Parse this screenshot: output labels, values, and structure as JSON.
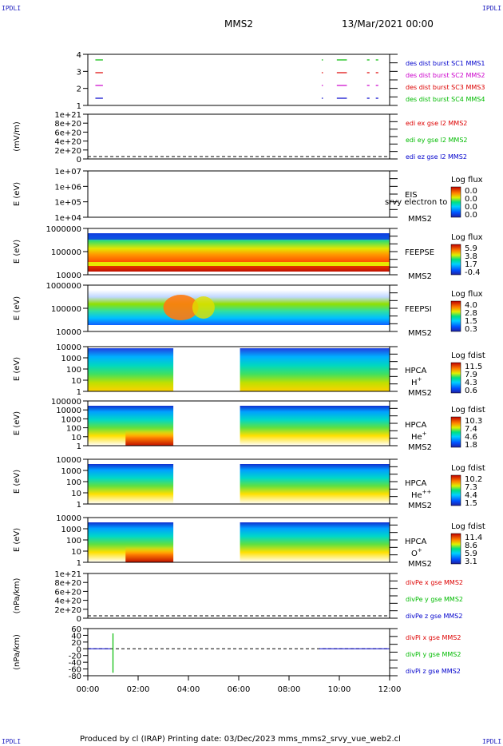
{
  "corners": {
    "tl": "IPDLI",
    "tr": "IPDLI",
    "bl": "IPDLI",
    "br": "IPDLI"
  },
  "header": {
    "title": "MMS2",
    "date": "13/Mar/2021 00:00"
  },
  "footer": {
    "text": "Produced by cl (IRAP)   Printing date: 03/Dec/2023   mms_mms2_srvy_vue_web2.cl"
  },
  "chart_data": {
    "type": "stacked-panels",
    "x_ticks": [
      "00:00",
      "02:00",
      "04:00",
      "06:00",
      "08:00",
      "10:00",
      "12:00"
    ],
    "x_range_hours": [
      0,
      12
    ],
    "panels": [
      {
        "id": "burst",
        "ylabel": "",
        "yticks": [
          "4",
          "3",
          "2",
          "1"
        ],
        "legend": [
          {
            "text": "des dist burst SC1 MMS1",
            "color": "#0000cc"
          },
          {
            "text": "des dist burst SC2 MMS2",
            "color": "#cc00cc"
          },
          {
            "text": "des dist burst SC3 MMS3",
            "color": "#dd0000"
          },
          {
            "text": "des dist burst SC4 MMS4",
            "color": "#00bb00"
          }
        ]
      },
      {
        "id": "edi",
        "ylabel": "(mV/m)",
        "yticks": [
          "1e+21",
          "8e+20",
          "6e+20",
          "4e+20",
          "2e+20",
          "0"
        ],
        "legend": [
          {
            "text": "edi ex gse l2 MMS2",
            "color": "#dd0000"
          },
          {
            "text": "edi ey gse l2 MMS2",
            "color": "#00bb00"
          },
          {
            "text": "edi ez gse l2 MMS2",
            "color": "#0000cc"
          }
        ]
      },
      {
        "id": "eis",
        "ylabel": "E (eV)",
        "yticks": [
          "1e+07",
          "1e+06",
          "1e+05",
          "1e+04"
        ],
        "label1": "EIS",
        "label2": "MMS2",
        "overlay": "srvy electron to",
        "cbar_title": "Log flux",
        "cbar_ticks": [
          "0.0",
          "0.0",
          "0.0",
          "0.0"
        ]
      },
      {
        "id": "feepse",
        "ylabel": "E (eV)",
        "yticks": [
          "1000000",
          "100000",
          "10000"
        ],
        "label1": "FEEPSE",
        "label2": "MMS2",
        "cbar_title": "Log flux",
        "cbar_ticks": [
          "5.9",
          "3.8",
          "1.7",
          "-0.4"
        ]
      },
      {
        "id": "feepsi",
        "ylabel": "E (eV)",
        "yticks": [
          "1000000",
          "100000",
          "10000"
        ],
        "label1": "FEEPSI",
        "label2": "MMS2",
        "cbar_title": "Log flux",
        "cbar_ticks": [
          "4.0",
          "2.8",
          "1.5",
          "0.3"
        ]
      },
      {
        "id": "hpca_h",
        "ylabel": "E (eV)",
        "yticks": [
          "10000",
          "1000",
          "100",
          "10",
          "1"
        ],
        "label1": "HPCA",
        "label2": "MMS2",
        "species": "H",
        "sup": "+",
        "cbar_title": "Log fdist",
        "cbar_ticks": [
          "11.5",
          "7.9",
          "4.3",
          "0.6"
        ]
      },
      {
        "id": "hpca_he",
        "ylabel": "E (eV)",
        "yticks": [
          "100000",
          "10000",
          "1000",
          "100",
          "10",
          "1"
        ],
        "label1": "HPCA",
        "label2": "MMS2",
        "species": "He",
        "sup": "+",
        "cbar_title": "Log fdist",
        "cbar_ticks": [
          "10.3",
          "7.4",
          "4.6",
          "1.8"
        ]
      },
      {
        "id": "hpca_hepp",
        "ylabel": "E (eV)",
        "yticks": [
          "10000",
          "1000",
          "100",
          "10",
          "1"
        ],
        "label1": "HPCA",
        "label2": "MMS2",
        "species": "He",
        "sup": "++",
        "cbar_title": "Log fdist",
        "cbar_ticks": [
          "10.2",
          "7.3",
          "4.4",
          "1.5"
        ]
      },
      {
        "id": "hpca_o",
        "ylabel": "E (eV)",
        "yticks": [
          "10000",
          "1000",
          "100",
          "10",
          "1"
        ],
        "label1": "HPCA",
        "label2": "MMS2",
        "species": "O",
        "sup": "+",
        "cbar_title": "Log fdist",
        "cbar_ticks": [
          "11.4",
          "8.6",
          "5.9",
          "3.1"
        ]
      },
      {
        "id": "divpe",
        "ylabel": "(nPa/km)",
        "yticks": [
          "1e+21",
          "8e+20",
          "6e+20",
          "4e+20",
          "2e+20",
          "0"
        ],
        "legend": [
          {
            "text": "divPe x gse MMS2",
            "color": "#dd0000"
          },
          {
            "text": "divPe y gse MMS2",
            "color": "#00bb00"
          },
          {
            "text": "divPe z gse MMS2",
            "color": "#0000cc"
          }
        ]
      },
      {
        "id": "divpi",
        "ylabel": "(nPa/km)",
        "yticks": [
          "60",
          "40",
          "20",
          "0",
          "-20",
          "-40",
          "-60",
          "-80"
        ],
        "legend": [
          {
            "text": "divPi x gse MMS2",
            "color": "#dd0000"
          },
          {
            "text": "divPi y gse MMS2",
            "color": "#00bb00"
          },
          {
            "text": "divPi z gse MMS2",
            "color": "#0000cc"
          }
        ]
      }
    ],
    "burst_intervals": [
      {
        "sc": 4,
        "color": "#00bb00",
        "intervals": [
          [
            0.3,
            0.6
          ],
          [
            9.3,
            9.35
          ],
          [
            9.9,
            10.3
          ],
          [
            11.1,
            11.2
          ],
          [
            11.45,
            11.55
          ]
        ]
      },
      {
        "sc": 3,
        "color": "#dd0000",
        "intervals": [
          [
            0.3,
            0.6
          ],
          [
            9.3,
            9.35
          ],
          [
            9.9,
            10.3
          ],
          [
            11.1,
            11.2
          ],
          [
            11.45,
            11.55
          ]
        ]
      },
      {
        "sc": 2,
        "color": "#cc00cc",
        "intervals": [
          [
            0.3,
            0.6
          ],
          [
            9.3,
            9.35
          ],
          [
            9.9,
            10.3
          ],
          [
            11.1,
            11.2
          ],
          [
            11.45,
            11.55
          ]
        ]
      },
      {
        "sc": 1,
        "color": "#0000cc",
        "intervals": [
          [
            0.3,
            0.6
          ],
          [
            9.3,
            9.35
          ],
          [
            9.9,
            10.3
          ],
          [
            11.1,
            11.2
          ],
          [
            11.45,
            11.55
          ]
        ]
      }
    ],
    "hpca_data_gap_hours": [
      3.4,
      6.05
    ],
    "divpi_spike_hour": 1.0
  }
}
